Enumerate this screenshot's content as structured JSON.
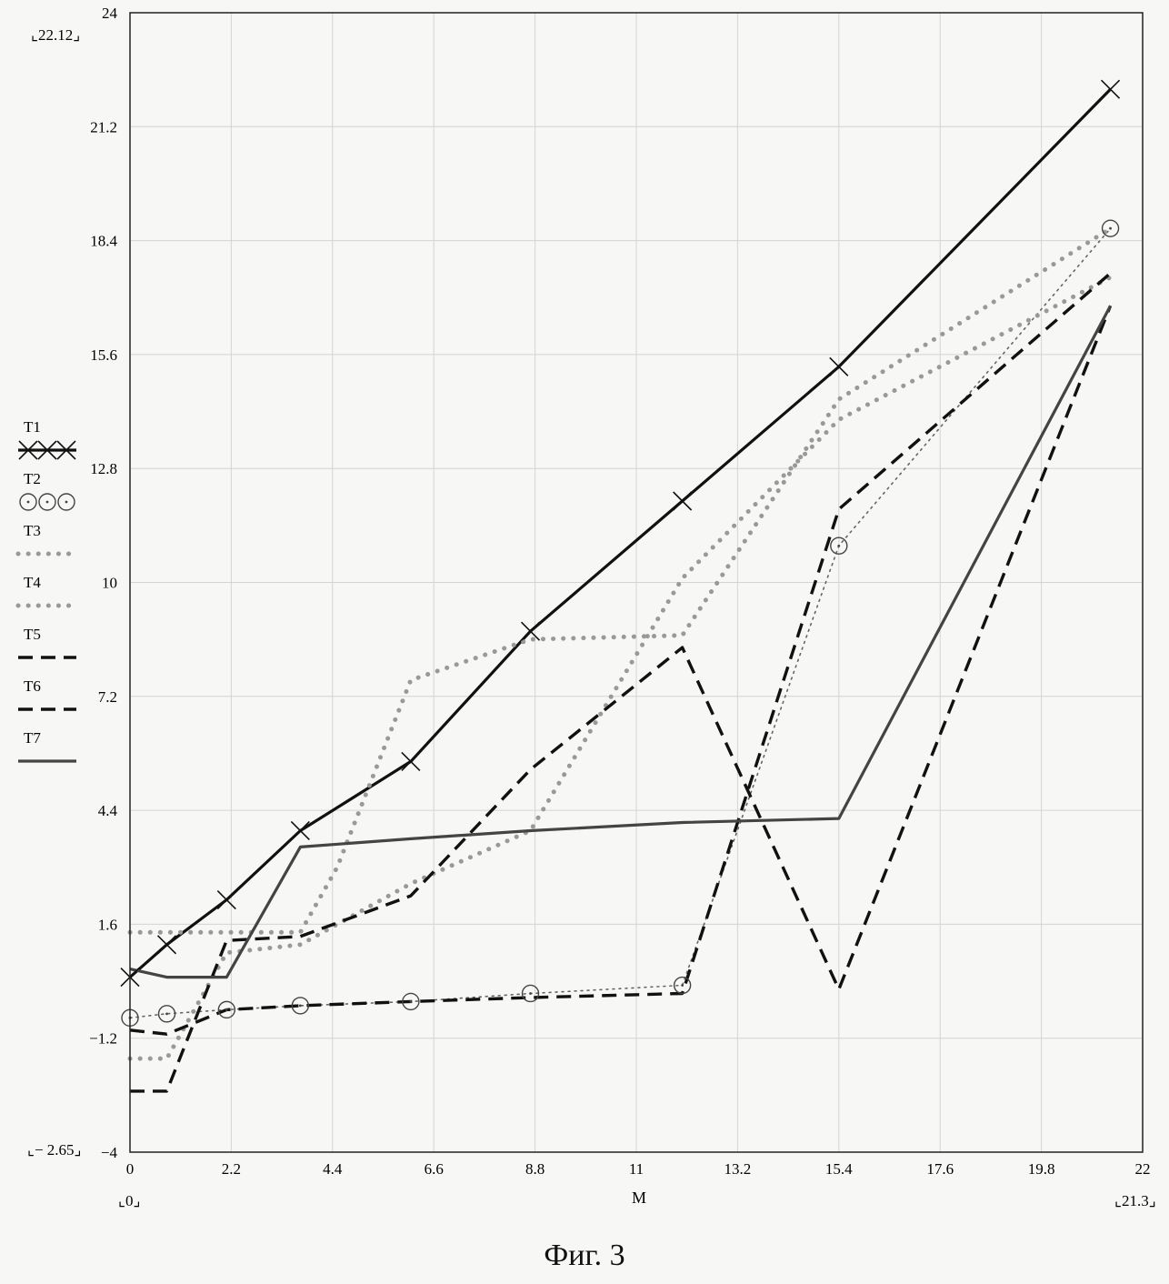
{
  "figure": {
    "caption": "Фиг. 3"
  },
  "chart_data": {
    "type": "line",
    "xlabel": "M",
    "ylabel": "",
    "xlim": [
      0,
      22
    ],
    "ylim": [
      -4,
      24
    ],
    "xticks": [
      0,
      2.2,
      4.4,
      6.6,
      8.8,
      11,
      13.2,
      15.4,
      17.6,
      19.8,
      22
    ],
    "yticks": [
      -4,
      -1.2,
      1.6,
      4.4,
      7.2,
      10,
      12.8,
      15.6,
      18.4,
      21.2,
      24
    ],
    "xtick_labels": [
      "0",
      "2.2",
      "4.4",
      "6.6",
      "8.8",
      "11",
      "13.2",
      "15.4",
      "17.6",
      "19.8",
      "22"
    ],
    "ytick_labels": [
      "−4",
      "−1.2",
      "1.6",
      "4.4",
      "7.2",
      "10",
      "12.8",
      "15.6",
      "18.4",
      "21.2",
      "24"
    ],
    "ymax_label": "22.12",
    "ymin_label": "− 2.65",
    "xmin_label": "0",
    "xmax_label": "21.3",
    "grid": true,
    "legend_position": "left",
    "series": [
      {
        "name": "T1",
        "style": "solid-x",
        "color": "#111111",
        "x": [
          0,
          0.8,
          2.1,
          3.7,
          6.1,
          8.7,
          12.0,
          15.4,
          21.3
        ],
        "y": [
          0.3,
          1.1,
          2.2,
          3.9,
          5.6,
          8.8,
          12.0,
          15.3,
          22.12
        ]
      },
      {
        "name": "T2",
        "style": "dotted-circle",
        "color": "#666666",
        "x": [
          0,
          0.8,
          2.1,
          3.7,
          6.1,
          8.7,
          12.0,
          15.4,
          21.3
        ],
        "y": [
          -0.7,
          -0.6,
          -0.5,
          -0.4,
          -0.3,
          -0.1,
          0.1,
          10.9,
          18.7
        ]
      },
      {
        "name": "T3",
        "style": "dotted",
        "color": "#999999",
        "x": [
          0,
          0.8,
          2.1,
          3.7,
          4.5,
          6.1,
          8.7,
          12.0,
          15.4,
          21.3
        ],
        "y": [
          1.4,
          1.4,
          1.4,
          1.4,
          3.0,
          7.6,
          8.6,
          8.7,
          14.5,
          18.7
        ]
      },
      {
        "name": "T4",
        "style": "dotted",
        "color": "#999999",
        "x": [
          0,
          0.8,
          2.1,
          3.7,
          6.1,
          8.7,
          12.0,
          15.4,
          21.3
        ],
        "y": [
          -1.7,
          -1.7,
          0.9,
          1.1,
          2.6,
          3.9,
          10.1,
          14.0,
          17.5
        ]
      },
      {
        "name": "T5",
        "style": "dashed",
        "color": "#111111",
        "x": [
          0,
          0.8,
          2.1,
          3.7,
          6.1,
          8.7,
          12.0,
          15.4,
          21.3
        ],
        "y": [
          -1.0,
          -1.1,
          -0.5,
          -0.4,
          -0.3,
          -0.2,
          -0.1,
          11.8,
          17.6
        ]
      },
      {
        "name": "T6",
        "style": "dashed",
        "color": "#111111",
        "x": [
          0,
          0.8,
          2.1,
          3.7,
          6.1,
          8.7,
          12.0,
          15.4,
          21.3
        ],
        "y": [
          -2.5,
          -2.5,
          1.2,
          1.3,
          2.3,
          5.4,
          8.4,
          0.0,
          16.8
        ]
      },
      {
        "name": "T7",
        "style": "solid",
        "color": "#444444",
        "x": [
          0,
          0.8,
          2.1,
          3.7,
          6.1,
          8.7,
          12.0,
          15.4,
          21.3
        ],
        "y": [
          0.5,
          0.3,
          0.3,
          3.5,
          3.7,
          3.9,
          4.1,
          4.2,
          16.8
        ]
      }
    ]
  }
}
